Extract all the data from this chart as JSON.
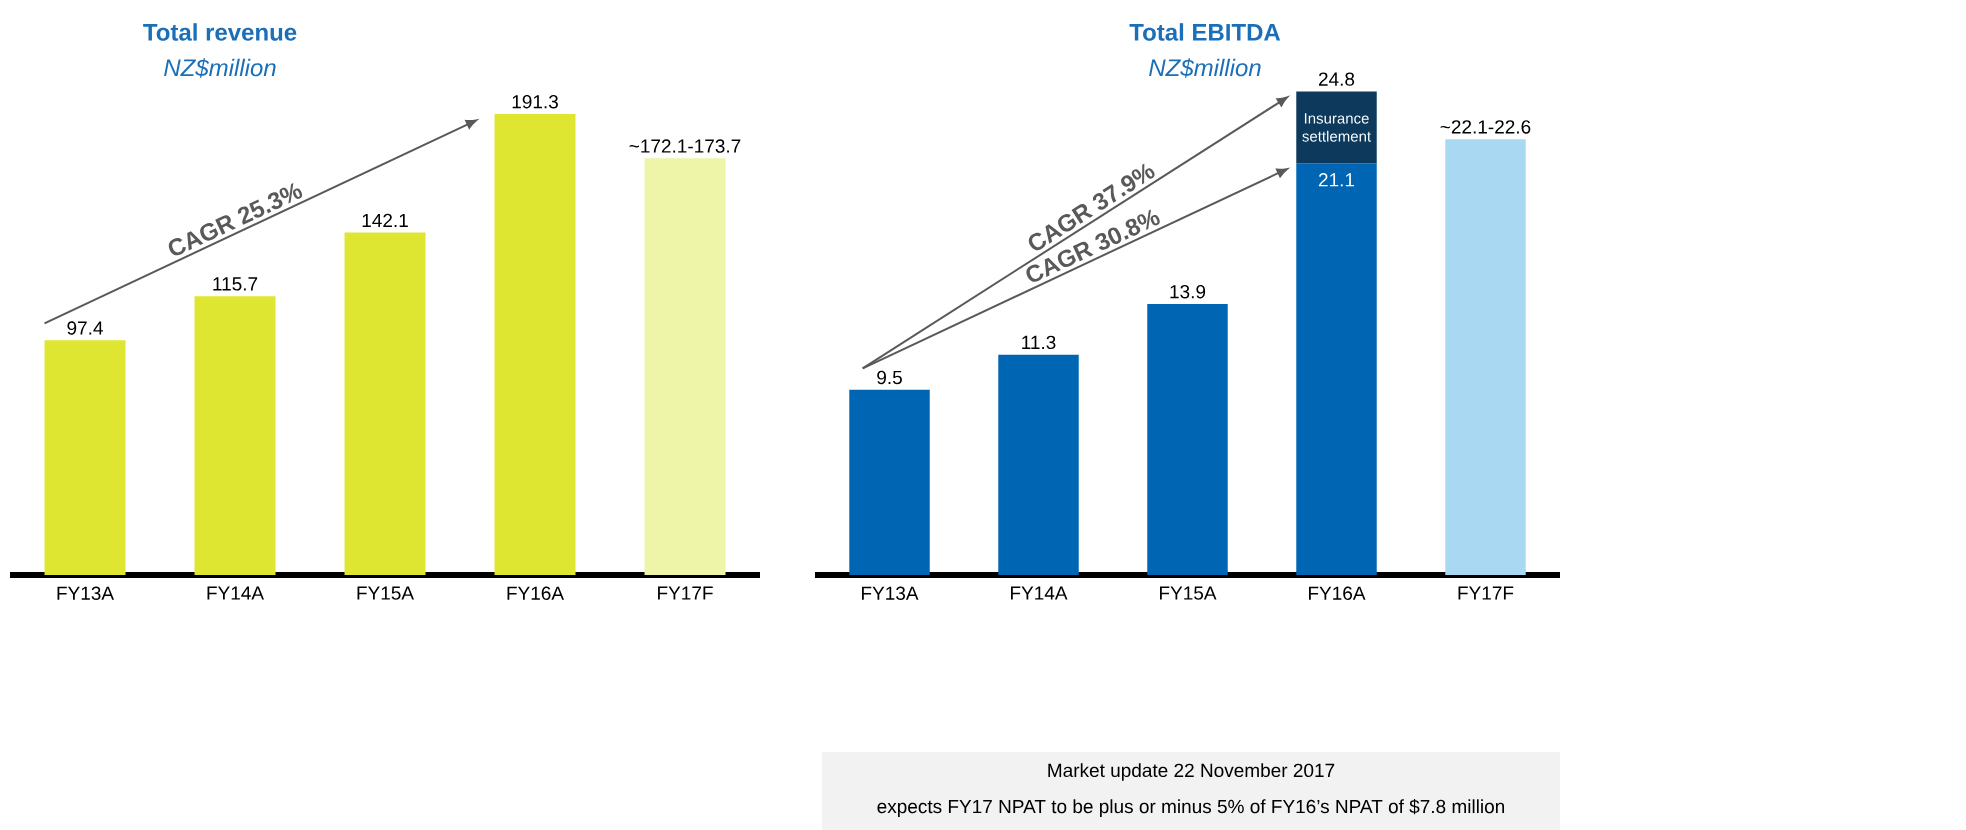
{
  "chart_data": [
    {
      "type": "bar",
      "title": "Total revenue",
      "subtitle": "NZ$million",
      "categories": [
        "FY13A",
        "FY14A",
        "FY15A",
        "FY16A",
        "FY17F"
      ],
      "series": [
        {
          "values": [
            97.4,
            115.7,
            142.1,
            191.3,
            172.9
          ],
          "colors": [
            "#dfe632",
            "#dfe632",
            "#dfe632",
            "#dfe632",
            "#eef4a8"
          ],
          "value_labels": [
            "97.4",
            "115.7",
            "142.1",
            "191.3",
            "~172.1-173.7"
          ]
        }
      ],
      "annotations": [
        "CAGR 25.3%"
      ]
    },
    {
      "type": "bar",
      "title": "Total EBITDA",
      "subtitle": "NZ$million",
      "stacked": true,
      "categories": [
        "FY13A",
        "FY14A",
        "FY15A",
        "FY16A",
        "FY17F"
      ],
      "series": [
        {
          "values": [
            9.5,
            11.3,
            13.9,
            21.1,
            22.35
          ],
          "colors": [
            "#0066b3",
            "#0066b3",
            "#0066b3",
            "#0066b3",
            "#a9d8f2"
          ],
          "value_labels": [
            "9.5",
            "11.3",
            "13.9",
            "21.1",
            "~22.1-22.6"
          ]
        },
        {
          "name": "Insurance settlement",
          "color": "#0d3a5c",
          "values": [
            null,
            null,
            null,
            3.7,
            null
          ]
        }
      ],
      "totals": [
        null,
        null,
        null,
        "24.8",
        null
      ],
      "annotations": [
        "CAGR 37.9%",
        "CAGR 30.8%",
        "Market update 22 November 2017",
        "expects FY17 NPAT to be plus or minus 5% of FY16’s NPAT of $7.8 million"
      ]
    }
  ]
}
